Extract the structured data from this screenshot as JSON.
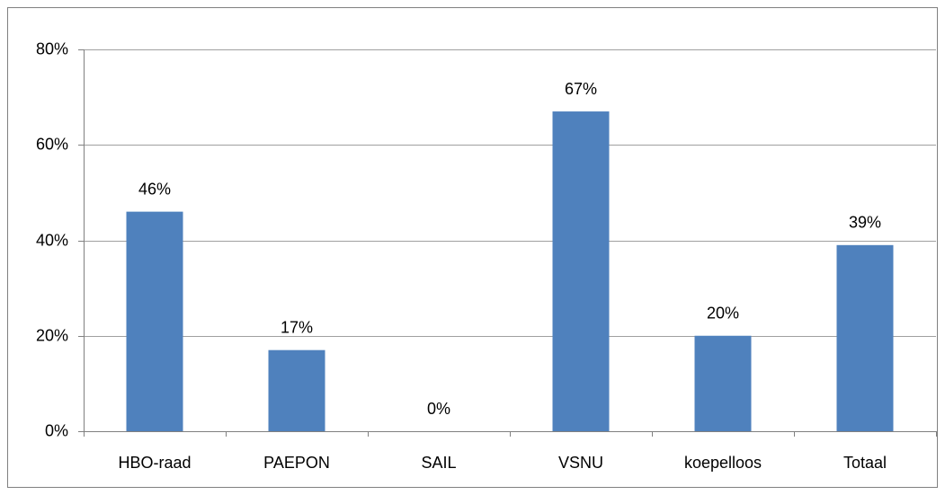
{
  "chart_data": {
    "type": "bar",
    "categories": [
      "HBO-raad",
      "PAEPON",
      "SAIL",
      "VSNU",
      "koepelloos",
      "Totaal"
    ],
    "values": [
      46,
      17,
      0,
      67,
      20,
      39
    ],
    "value_labels": [
      "46%",
      "17%",
      "0%",
      "67%",
      "20%",
      "39%"
    ],
    "color": "#4f81bd",
    "ylim": [
      0,
      80
    ],
    "yticks": [
      {
        "value": 0,
        "label": "0%"
      },
      {
        "value": 20,
        "label": "20%"
      },
      {
        "value": 40,
        "label": "40%"
      },
      {
        "value": 60,
        "label": "60%"
      },
      {
        "value": 80,
        "label": "80%"
      }
    ],
    "grid": true
  }
}
